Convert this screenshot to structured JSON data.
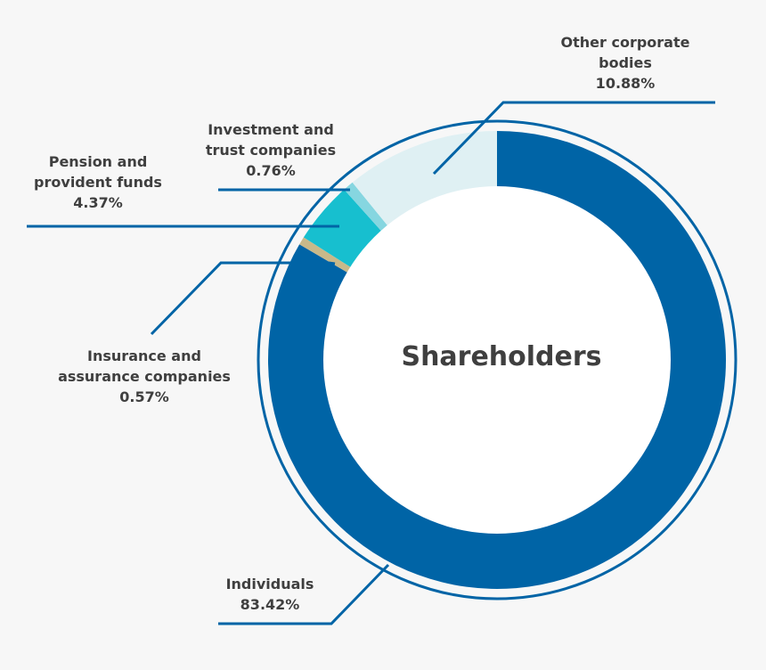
{
  "chart_data": {
    "type": "pie",
    "variant": "donut",
    "center_label": "Shareholders",
    "start_angle": "12 o'clock, clockwise",
    "slices": [
      {
        "label": "Individuals",
        "value": 83.42,
        "value_label": "83.42%",
        "color": "#0064a6"
      },
      {
        "label": "Insurance and assurance companies",
        "value": 0.57,
        "value_label": "0.57%",
        "color": "#c8b98a"
      },
      {
        "label": "Pension and provident funds",
        "value": 4.37,
        "value_label": "4.37%",
        "color": "#17bfcf"
      },
      {
        "label": "Investment and trust companies",
        "value": 0.76,
        "value_label": "0.76%",
        "color": "#86d6e0"
      },
      {
        "label": "Other corporate bodies",
        "value": 10.88,
        "value_label": "10.88%",
        "color": "#dff0f3"
      }
    ],
    "label_lines": [
      "Individuals",
      "Insurance and|assurance companies",
      "Pension and|provident funds",
      "Investment and|trust companies",
      "Other corporate|bodies"
    ],
    "line_color": "#0064a6"
  }
}
